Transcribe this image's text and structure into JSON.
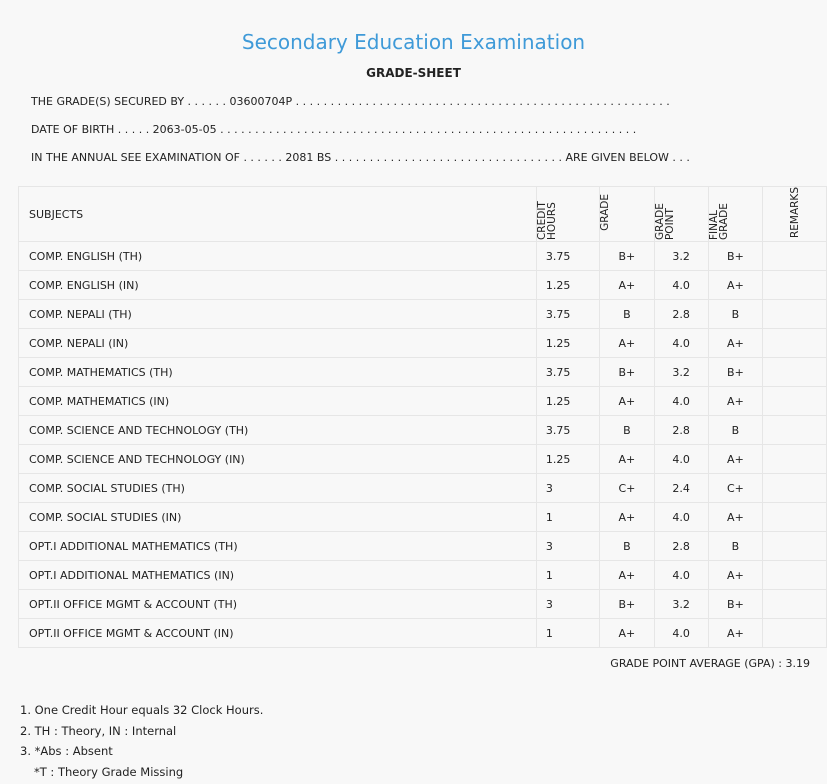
{
  "header": {
    "title": "Secondary Education Examination",
    "subtitle": "GRADE-SHEET"
  },
  "info": [
    "THE GRADE(S) SECURED BY . . . . . . 03600704P . . . . . . . . . . . . . . . . . . . . . . . . . . . . . . . . . . . . . . . . . . . . . . . . . . . . . .",
    "DATE OF BIRTH . . . . . 2063-05-05 . . . . . . . . . . . . . . . . . . . . . . . . . . . . . . . . . . . . . . . . . . . . . . . . . . . . . . . . . . . .",
    "IN THE ANNUAL SEE EXAMINATION OF . . . . . . 2081 BS . . . . . . . . . . . . . . . . . . . . . . . . . . . . . . . . . ARE GIVEN BELOW . . ."
  ],
  "table": {
    "columns": [
      "SUBJECTS",
      "CREDIT HOURS",
      "GRADE",
      "GRADE POINT",
      "FINAL GRADE",
      "REMARKS"
    ],
    "rows": [
      [
        "COMP. ENGLISH (TH)",
        "3.75",
        "B+",
        "3.2",
        "B+"
      ],
      [
        "COMP. ENGLISH (IN)",
        "1.25",
        "A+",
        "4.0",
        "A+"
      ],
      [
        "COMP. NEPALI (TH)",
        "3.75",
        "B",
        "2.8",
        "B"
      ],
      [
        "COMP. NEPALI (IN)",
        "1.25",
        "A+",
        "4.0",
        "A+"
      ],
      [
        "COMP. MATHEMATICS (TH)",
        "3.75",
        "B+",
        "3.2",
        "B+"
      ],
      [
        "COMP. MATHEMATICS (IN)",
        "1.25",
        "A+",
        "4.0",
        "A+"
      ],
      [
        "COMP. SCIENCE AND TECHNOLOGY (TH)",
        "3.75",
        "B",
        "2.8",
        "B"
      ],
      [
        "COMP. SCIENCE AND TECHNOLOGY (IN)",
        "1.25",
        "A+",
        "4.0",
        "A+"
      ],
      [
        "COMP. SOCIAL STUDIES (TH)",
        "3",
        "C+",
        "2.4",
        "C+"
      ],
      [
        "COMP. SOCIAL STUDIES (IN)",
        "1",
        "A+",
        "4.0",
        "A+"
      ],
      [
        "OPT.I ADDITIONAL MATHEMATICS (TH)",
        "3",
        "B",
        "2.8",
        "B"
      ],
      [
        "OPT.I ADDITIONAL MATHEMATICS (IN)",
        "1",
        "A+",
        "4.0",
        "A+"
      ],
      [
        "OPT.II OFFICE MGMT & ACCOUNT (TH)",
        "3",
        "B+",
        "3.2",
        "B+"
      ],
      [
        "OPT.II OFFICE MGMT & ACCOUNT (IN)",
        "1",
        "A+",
        "4.0",
        "A+"
      ]
    ]
  },
  "gpa": "GRADE POINT AVERAGE (GPA) : 3.19",
  "notes": [
    "1. One Credit Hour equals 32 Clock Hours.",
    "2. TH : Theory, IN : Internal",
    "3. *Abs : Absent",
    "*T : Theory Grade Missing"
  ]
}
